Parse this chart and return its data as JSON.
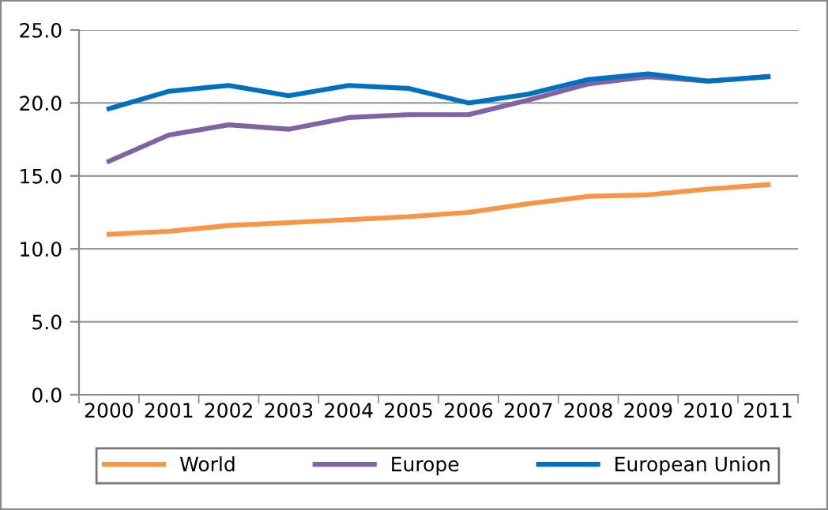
{
  "chart_data": {
    "type": "line",
    "categories": [
      "2000",
      "2001",
      "2002",
      "2003",
      "2004",
      "2005",
      "2006",
      "2007",
      "2008",
      "2009",
      "2010",
      "2011"
    ],
    "series": [
      {
        "name": "World",
        "color": "#f79646",
        "values": [
          11.0,
          11.2,
          11.6,
          11.8,
          12.0,
          12.2,
          12.5,
          13.1,
          13.6,
          13.7,
          14.1,
          14.4
        ]
      },
      {
        "name": "Europe",
        "color": "#8064a2",
        "values": [
          16.0,
          17.8,
          18.5,
          18.2,
          19.0,
          19.2,
          19.2,
          20.2,
          21.3,
          21.8,
          21.5,
          21.8
        ]
      },
      {
        "name": "European Union",
        "color": "#0070c0",
        "values": [
          19.6,
          20.8,
          21.2,
          20.5,
          21.2,
          21.0,
          20.0,
          20.6,
          21.6,
          22.0,
          21.5,
          21.8
        ]
      }
    ],
    "ylim": [
      0,
      25
    ],
    "yticks": [
      {
        "value": 0,
        "label": "0.0"
      },
      {
        "value": 5,
        "label": "5.0"
      },
      {
        "value": 10,
        "label": "10.0"
      },
      {
        "value": 15,
        "label": "15.0"
      },
      {
        "value": 20,
        "label": "20.0"
      },
      {
        "value": 25,
        "label": "25.0"
      }
    ],
    "grid": "y",
    "legend": "bottom",
    "marker": "none",
    "line_style": "solid"
  }
}
